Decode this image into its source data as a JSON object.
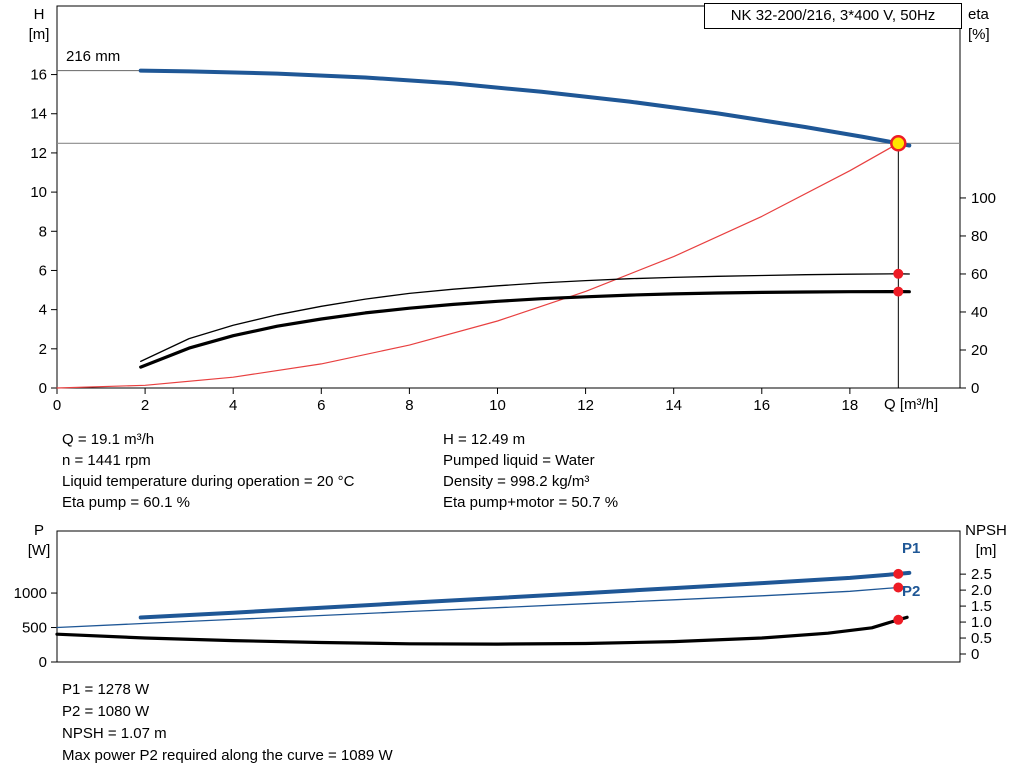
{
  "title_box": {
    "text": "NK 32-200/216, 3*400 V, 50Hz"
  },
  "axis_labels": {
    "h": [
      "H",
      "[m]"
    ],
    "eta": [
      "eta",
      "[%]"
    ],
    "q": "Q [m³/h]",
    "p": [
      "P",
      "[W]"
    ],
    "npsh": [
      "NPSH",
      "[m]"
    ]
  },
  "power_labels": {
    "p1": "P1",
    "p2": "P2"
  },
  "info": {
    "left": [
      "Q = 19.1 m³/h",
      "n = 1441 rpm",
      "Liquid temperature during operation = 20 °C",
      "Eta pump = 60.1 %"
    ],
    "right": [
      "H = 12.49 m",
      "Pumped liquid = Water",
      "Density = 998.2 kg/m³",
      "Eta pump+motor = 50.7 %"
    ]
  },
  "results": [
    "P1 = 1278 W",
    "P2 = 1080 W",
    "NPSH = 1.07 m",
    "Max power P2 required along the curve = 1089 W"
  ],
  "colors": {
    "curve_blue": "#1f5796",
    "curve_black": "#000000",
    "system_red": "#e84040",
    "dot_red": "#ee1c25",
    "duty_yellow": "#ffe400",
    "guide_gray": "#8c8c8c"
  },
  "duty_point": {
    "Q": 19.1,
    "H": 12.49,
    "eta_pump": 60.1,
    "eta_pump_motor": 50.7,
    "P1": 1278,
    "P2": 1080,
    "NPSH": 1.07
  },
  "chart_data": [
    {
      "id": "top",
      "type": "line",
      "impeller_label": "216 mm",
      "x_label": "Q [m³/h]",
      "y_left_label": "H [m]",
      "y_right_label": "eta [%]",
      "axes": {
        "x": {
          "min": 0,
          "max": 20.5,
          "ticks": [
            0,
            2,
            4,
            6,
            8,
            10,
            12,
            14,
            16,
            18
          ]
        },
        "left": {
          "min": 0,
          "max": 19.5,
          "ticks": [
            0,
            2,
            4,
            6,
            8,
            10,
            12,
            14,
            16
          ]
        },
        "right": {
          "min": 0,
          "max": 201,
          "ticks": [
            0,
            20,
            40,
            60,
            80,
            100
          ]
        }
      },
      "series": [
        {
          "name": "system-curve",
          "axis": "left",
          "color_key": "system_red",
          "width": 1.2,
          "points": [
            [
              0,
              0
            ],
            [
              2,
              0.14
            ],
            [
              4,
              0.55
            ],
            [
              6,
              1.23
            ],
            [
              8,
              2.19
            ],
            [
              10,
              3.42
            ],
            [
              12,
              4.93
            ],
            [
              14,
              6.71
            ],
            [
              16,
              8.76
            ],
            [
              18,
              11.09
            ],
            [
              19.1,
              12.49
            ]
          ]
        },
        {
          "name": "pump-curve-216mm",
          "axis": "left",
          "color_key": "curve_blue",
          "width": 4,
          "points": [
            [
              1.9,
              16.2
            ],
            [
              3,
              16.16
            ],
            [
              5,
              16.05
            ],
            [
              7,
              15.85
            ],
            [
              9,
              15.55
            ],
            [
              11,
              15.12
            ],
            [
              13,
              14.62
            ],
            [
              15,
              14.02
            ],
            [
              17,
              13.32
            ],
            [
              18.3,
              12.82
            ],
            [
              19.1,
              12.49
            ],
            [
              19.35,
              12.38
            ]
          ]
        },
        {
          "name": "eta-pump-curve",
          "axis": "right",
          "color_key": "curve_black",
          "width": 1.3,
          "points": [
            [
              1.9,
              14
            ],
            [
              3,
              26
            ],
            [
              4,
              33
            ],
            [
              5,
              38.5
            ],
            [
              6,
              43
            ],
            [
              7,
              46.8
            ],
            [
              8,
              49.8
            ],
            [
              9,
              52
            ],
            [
              10,
              53.8
            ],
            [
              11,
              55.3
            ],
            [
              12,
              56.5
            ],
            [
              13,
              57.5
            ],
            [
              14,
              58.2
            ],
            [
              15,
              58.8
            ],
            [
              16,
              59.2
            ],
            [
              17,
              59.6
            ],
            [
              18,
              59.9
            ],
            [
              19.1,
              60.1
            ],
            [
              19.35,
              60.0
            ]
          ]
        },
        {
          "name": "eta-pump-motor-curve",
          "axis": "right",
          "color_key": "curve_black",
          "width": 3.2,
          "points": [
            [
              1.9,
              11
            ],
            [
              3,
              21
            ],
            [
              4,
              27.5
            ],
            [
              5,
              32.5
            ],
            [
              6,
              36.3
            ],
            [
              7,
              39.5
            ],
            [
              8,
              42
            ],
            [
              9,
              44
            ],
            [
              10,
              45.6
            ],
            [
              11,
              47
            ],
            [
              12,
              48
            ],
            [
              13,
              48.9
            ],
            [
              14,
              49.5
            ],
            [
              15,
              50
            ],
            [
              16,
              50.3
            ],
            [
              17,
              50.5
            ],
            [
              18,
              50.65
            ],
            [
              19.1,
              50.7
            ],
            [
              19.35,
              50.65
            ]
          ]
        }
      ],
      "guides": {
        "h_line": {
          "axis": "left",
          "value": 12.49
        },
        "impeller_line": {
          "value": 16.2,
          "x_from": 0,
          "x_to": 1.9
        },
        "duty_vline": {
          "x": 19.1,
          "from": 0,
          "to": 12.49
        }
      },
      "markers": [
        {
          "type": "dot",
          "x": 19.1,
          "axis": "right",
          "value": 60.1
        },
        {
          "type": "dot",
          "x": 19.1,
          "axis": "right",
          "value": 50.7
        },
        {
          "type": "duty",
          "x": 19.1,
          "axis": "left",
          "value": 12.49
        }
      ]
    },
    {
      "id": "bottom",
      "type": "line",
      "x_label": "",
      "y_left_label": "P [W]",
      "y_right_label": "NPSH [m]",
      "axes": {
        "x": {
          "min": 0,
          "max": 20.5,
          "ticks": []
        },
        "left": {
          "min": 0,
          "max": 1900,
          "ticks": [
            0,
            500,
            1000
          ],
          "tick_labels": [
            "0",
            "500",
            "1000"
          ]
        },
        "right": {
          "min": -0.25,
          "max": 3.85,
          "ticks": [
            0,
            0.5,
            1,
            1.5,
            2,
            2.5
          ],
          "tick_labels": [
            "0",
            "0.5",
            "1.0",
            "1.5",
            "2.0",
            "2.5"
          ]
        }
      },
      "series": [
        {
          "name": "p2-curve",
          "axis": "left",
          "color_key": "curve_blue",
          "width": 1.3,
          "points": [
            [
              0,
              500
            ],
            [
              2,
              560
            ],
            [
              4,
              618
            ],
            [
              6,
              675
            ],
            [
              8,
              732
            ],
            [
              10,
              788
            ],
            [
              12,
              845
            ],
            [
              14,
              902
            ],
            [
              16,
              960
            ],
            [
              18,
              1025
            ],
            [
              19.1,
              1080
            ],
            [
              19.35,
              1089
            ]
          ]
        },
        {
          "name": "p1-curve",
          "axis": "left",
          "color_key": "curve_blue",
          "width": 4,
          "points": [
            [
              1.9,
              645
            ],
            [
              4,
              715
            ],
            [
              6,
              788
            ],
            [
              8,
              858
            ],
            [
              10,
              928
            ],
            [
              12,
              1000
            ],
            [
              14,
              1072
            ],
            [
              16,
              1145
            ],
            [
              18,
              1220
            ],
            [
              19.1,
              1278
            ],
            [
              19.35,
              1292
            ]
          ]
        },
        {
          "name": "npsh-curve",
          "axis": "right",
          "color_key": "curve_black",
          "width": 3.2,
          "points": [
            [
              0,
              0.62
            ],
            [
              2,
              0.5
            ],
            [
              4,
              0.42
            ],
            [
              6,
              0.36
            ],
            [
              8,
              0.32
            ],
            [
              10,
              0.31
            ],
            [
              12,
              0.33
            ],
            [
              14,
              0.39
            ],
            [
              16,
              0.5
            ],
            [
              17.5,
              0.65
            ],
            [
              18.5,
              0.82
            ],
            [
              19.1,
              1.07
            ],
            [
              19.3,
              1.15
            ]
          ]
        }
      ],
      "guides": {},
      "markers": [
        {
          "type": "dot",
          "x": 19.1,
          "axis": "left",
          "value": 1278
        },
        {
          "type": "dot",
          "x": 19.1,
          "axis": "left",
          "value": 1080
        },
        {
          "type": "dot",
          "x": 19.1,
          "axis": "right",
          "value": 1.07
        }
      ]
    }
  ]
}
